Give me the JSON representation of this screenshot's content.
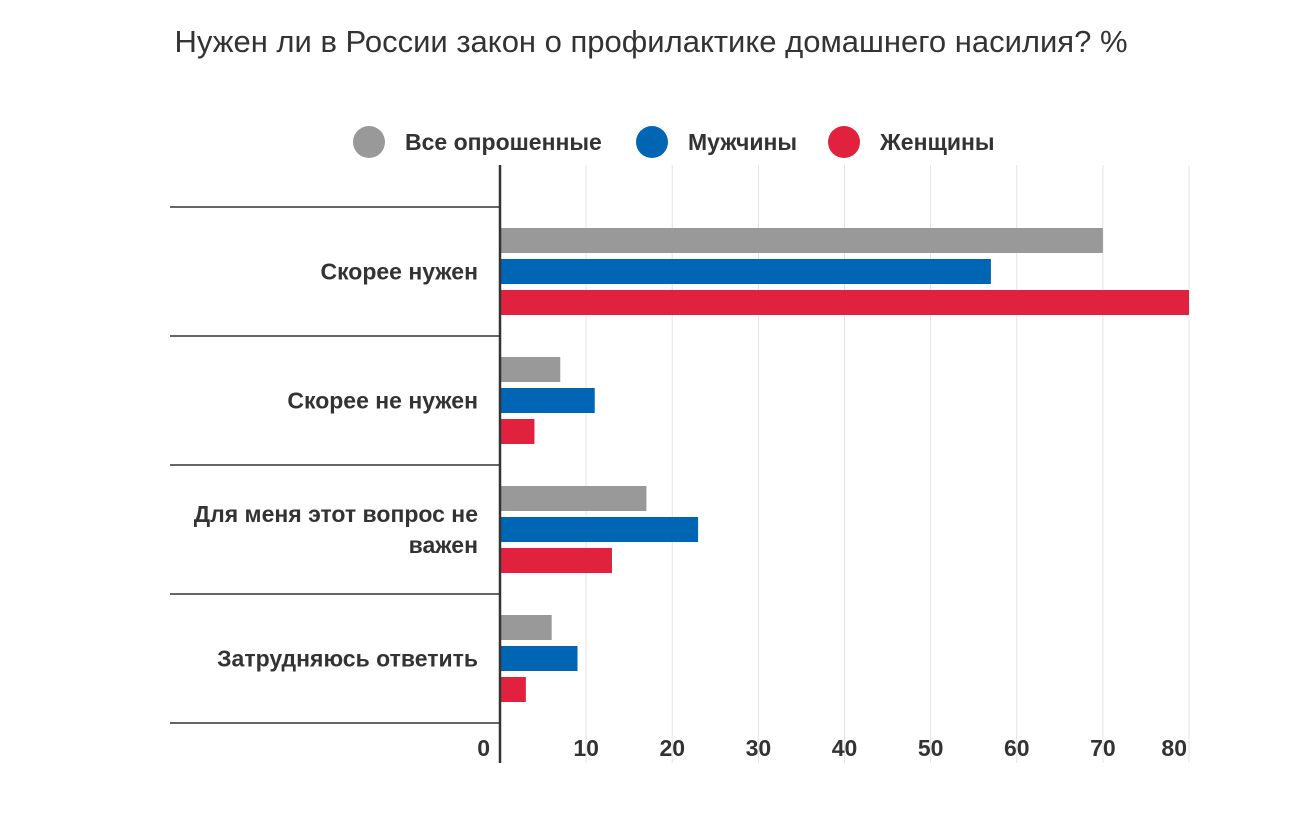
{
  "chart_data": {
    "type": "bar",
    "orientation": "horizontal",
    "title": "Нужен ли в России закон о профилактике домашнего насилия? %",
    "categories": [
      [
        "Скорее нужен"
      ],
      [
        "Скорее не нужен"
      ],
      [
        "Для меня этот вопрос не",
        "важен"
      ],
      [
        "Затрудняюсь ответить"
      ]
    ],
    "series": [
      {
        "name": "Все опрошенные",
        "color": "#999999",
        "values": [
          70,
          7,
          17,
          6
        ]
      },
      {
        "name": "Мужчины",
        "color": "#0066b3",
        "values": [
          57,
          11,
          23,
          9
        ]
      },
      {
        "name": "Женщины",
        "color": "#e0223f",
        "values": [
          80,
          4,
          13,
          3
        ]
      }
    ],
    "xlim": [
      0,
      80
    ],
    "xticks": [
      "0",
      "10",
      "20",
      "30",
      "40",
      "50",
      "60",
      "70",
      "80"
    ],
    "grid": true,
    "legend_position": "top"
  }
}
